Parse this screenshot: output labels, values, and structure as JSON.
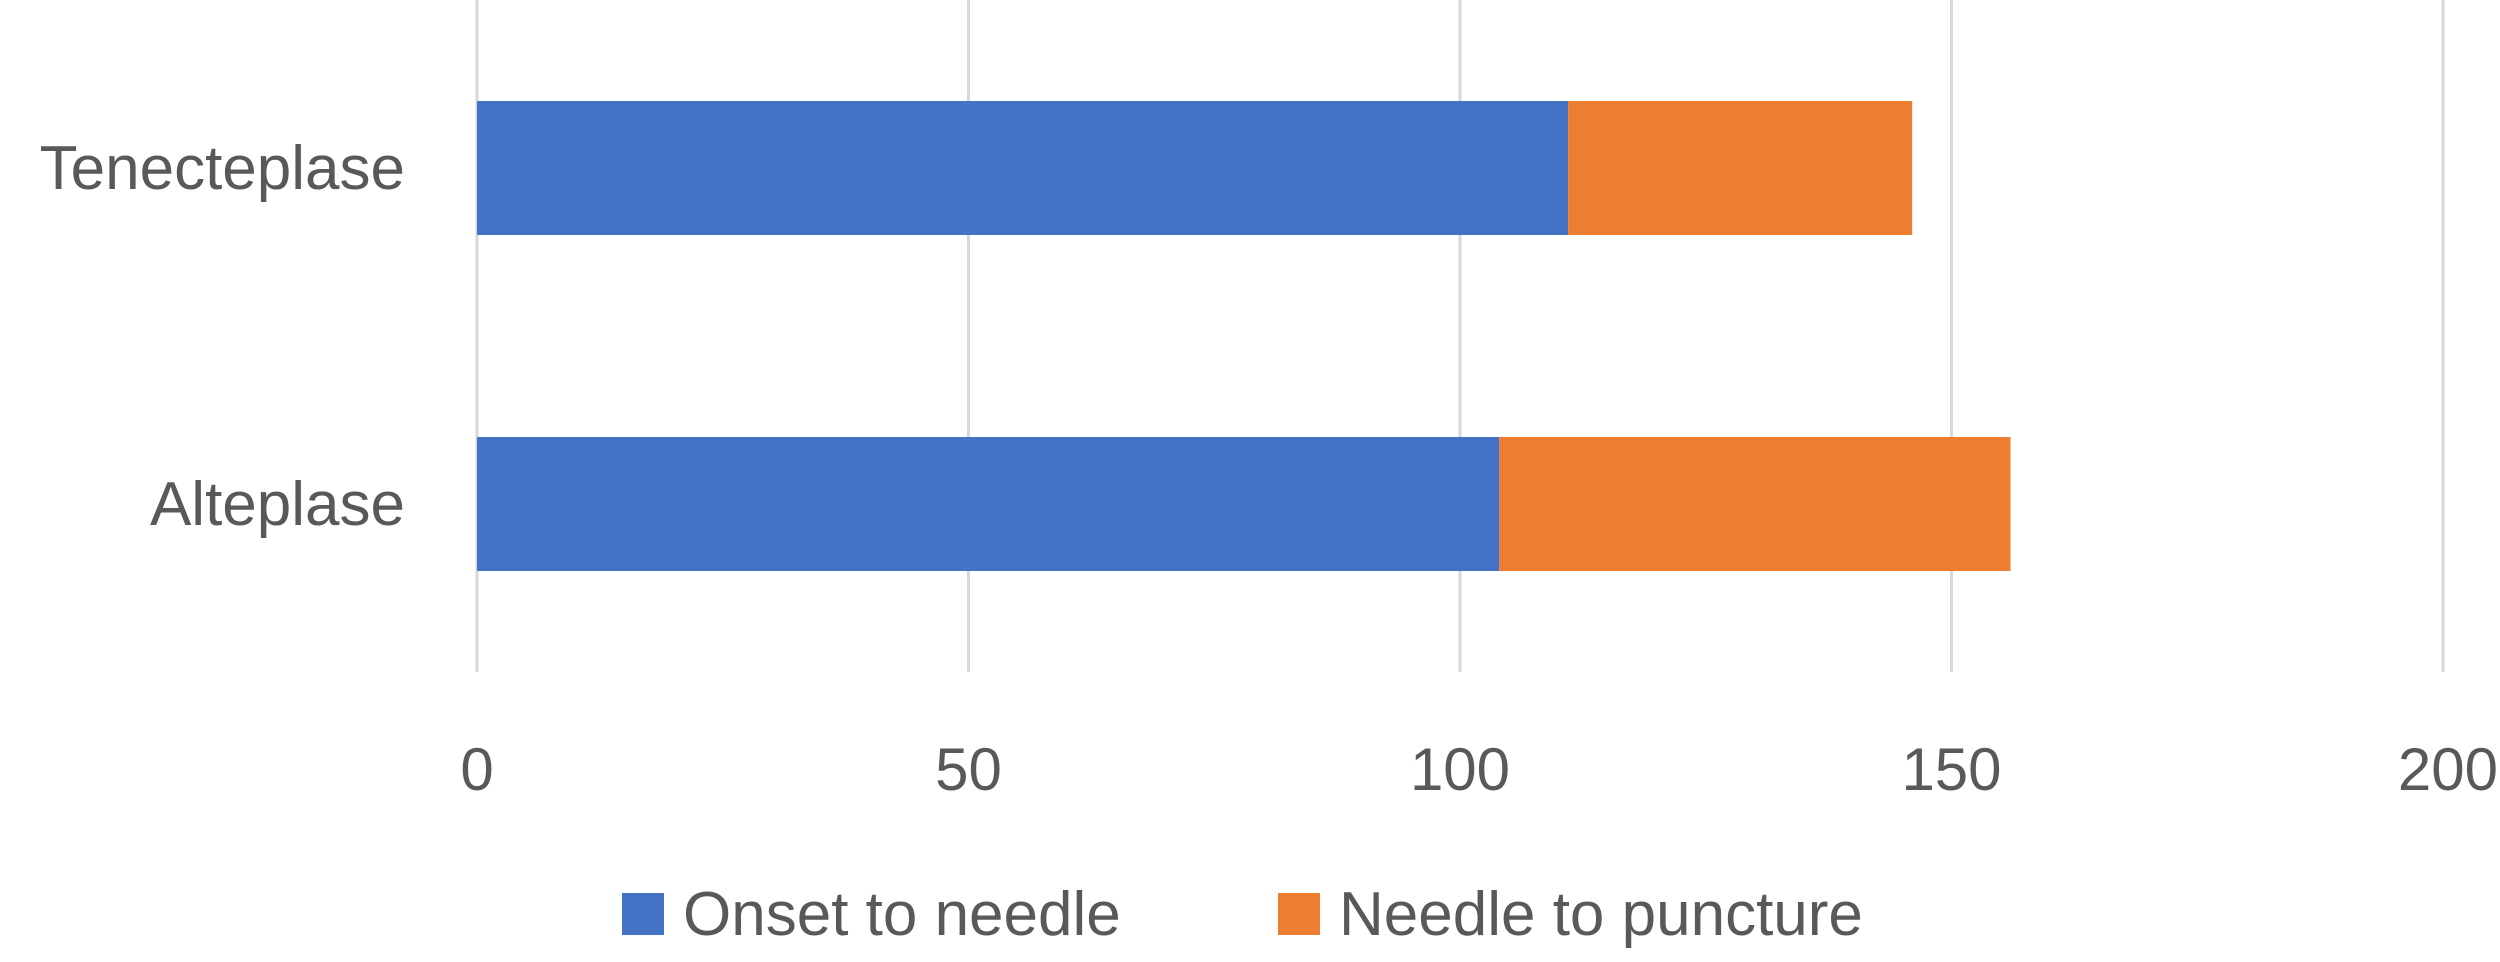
{
  "chart_data": {
    "type": "bar",
    "orientation": "horizontal",
    "stacked": true,
    "categories": [
      "Tenecteplase",
      "Alteplase"
    ],
    "series": [
      {
        "name": "Onset to needle",
        "values": [
          111,
          104
        ],
        "color": "#4472C4"
      },
      {
        "name": "Needle to puncture",
        "values": [
          35,
          52
        ],
        "color": "#ED7D31"
      }
    ],
    "xlim": [
      0,
      200
    ],
    "xticks": [
      "0",
      "50",
      "100",
      "150",
      "200"
    ],
    "xlabel": "",
    "ylabel": "",
    "title": "",
    "grid": "vertical",
    "gridline_color": "#D9D9D9",
    "legend_position": "bottom"
  }
}
